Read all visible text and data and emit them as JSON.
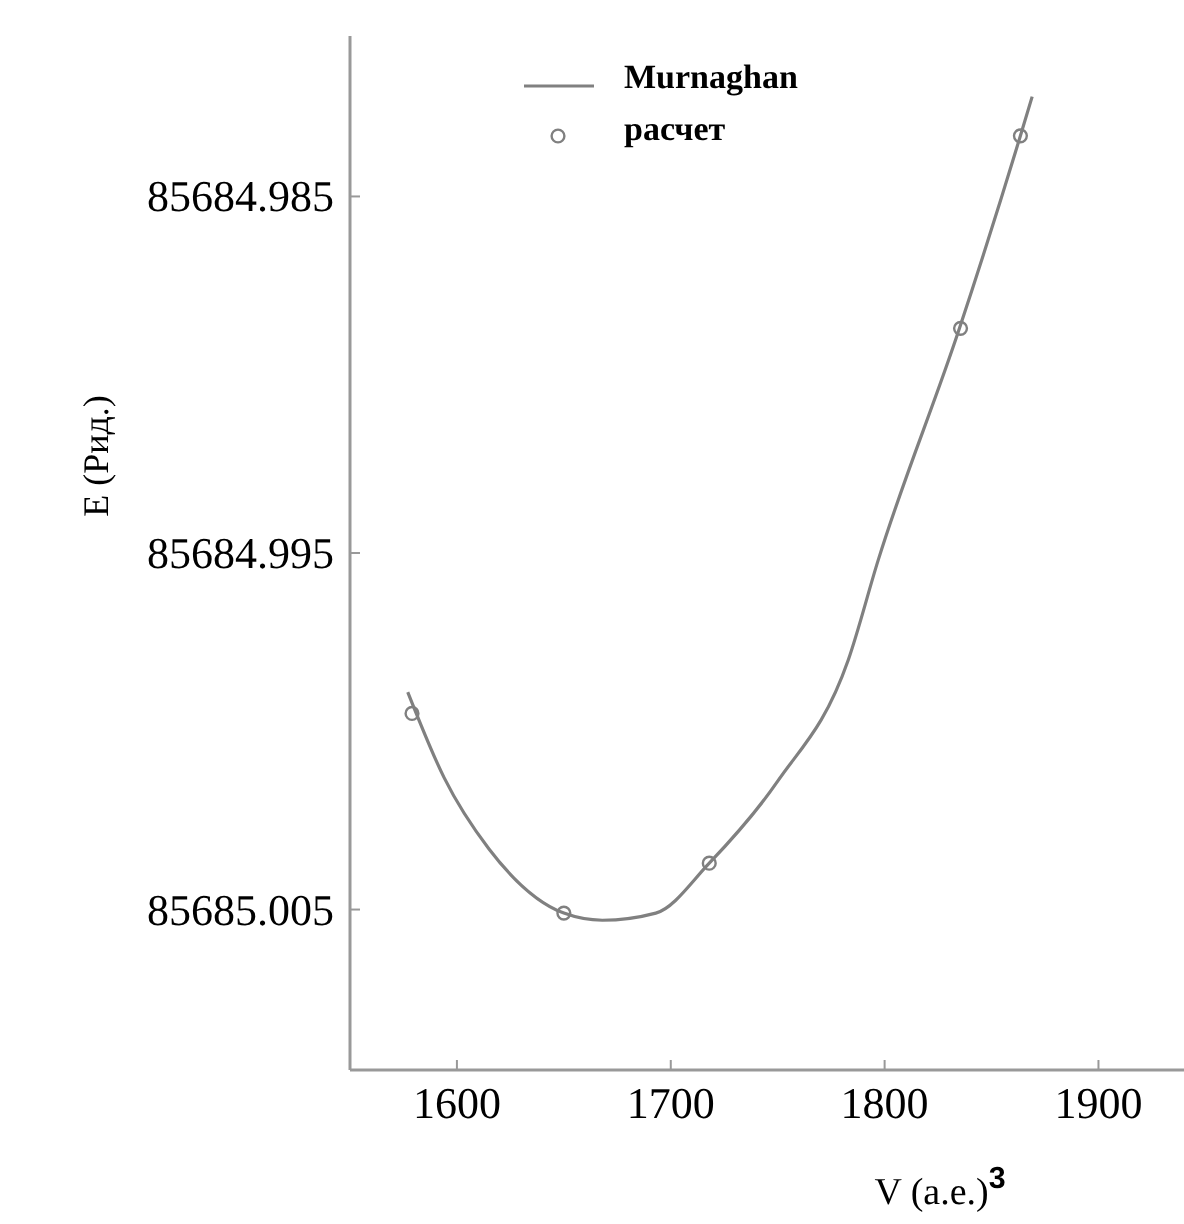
{
  "chart_data": {
    "type": "line",
    "xlabel": "V (a.e.)$^{3}$",
    "ylabel": "E (Рид.)",
    "xlim": [
      1550,
      1940
    ],
    "xticks": [
      1600,
      1700,
      1800,
      1900
    ],
    "ylim": [
      85685.0095,
      85684.9805
    ],
    "yticks": [
      85684.985,
      85684.995,
      85685.005
    ],
    "grid": false,
    "legend": "top",
    "series": [
      {
        "name": "Murnaghan",
        "type": "line",
        "color": "#808080",
        "marker": "none",
        "line_style": "solid",
        "x": [
          1577,
          1594,
          1615,
          1650,
          1668,
          1693,
          1718,
          1750,
          1783,
          1797,
          1835,
          1863.5,
          1869
        ],
        "values": [
          85684.9989,
          85685.0013,
          85685.0033,
          85685.0051,
          85685.0053,
          85685.0051,
          85685.0037,
          85685.0014,
          85684.998,
          85684.9952,
          85684.9887,
          85684.9833,
          85684.9822
        ]
      },
      {
        "name": "расчет",
        "type": "scatter",
        "color": "#808080",
        "marker": "circle",
        "x": [
          1579,
          1650,
          1718,
          1835.5,
          1863.5
        ],
        "values": [
          85684.9995,
          85685.0051,
          85685.0037,
          85684.9887,
          85684.9833
        ]
      }
    ]
  }
}
